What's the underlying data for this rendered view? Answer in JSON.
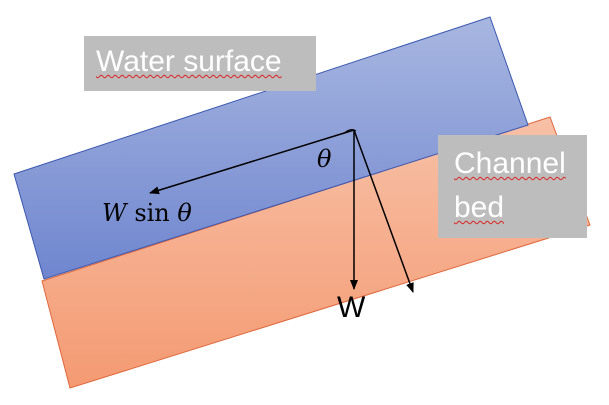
{
  "labels": {
    "water_surface": "Water surface",
    "channel_bed_line1": "Channel",
    "channel_bed_line2": "bed",
    "theta": "θ",
    "component_var": "W",
    "component_func": "sin",
    "component_angle": "θ",
    "weight": "W"
  },
  "colors": {
    "water_top": "#a8b6e0",
    "water_bottom": "#6f86cf",
    "water_edge": "#3b57b0",
    "bed_top": "#f7c0a6",
    "bed_bottom": "#f49a72",
    "bed_edge": "#e0673b",
    "label_box": "#bdbdbd"
  },
  "icons": {
    "weight_arrow": "down-arrow-icon",
    "component_arrow": "left-arrow-icon",
    "normal_arrow": "diagonal-arrow-icon",
    "angle_arc": "angle-arc-icon"
  }
}
